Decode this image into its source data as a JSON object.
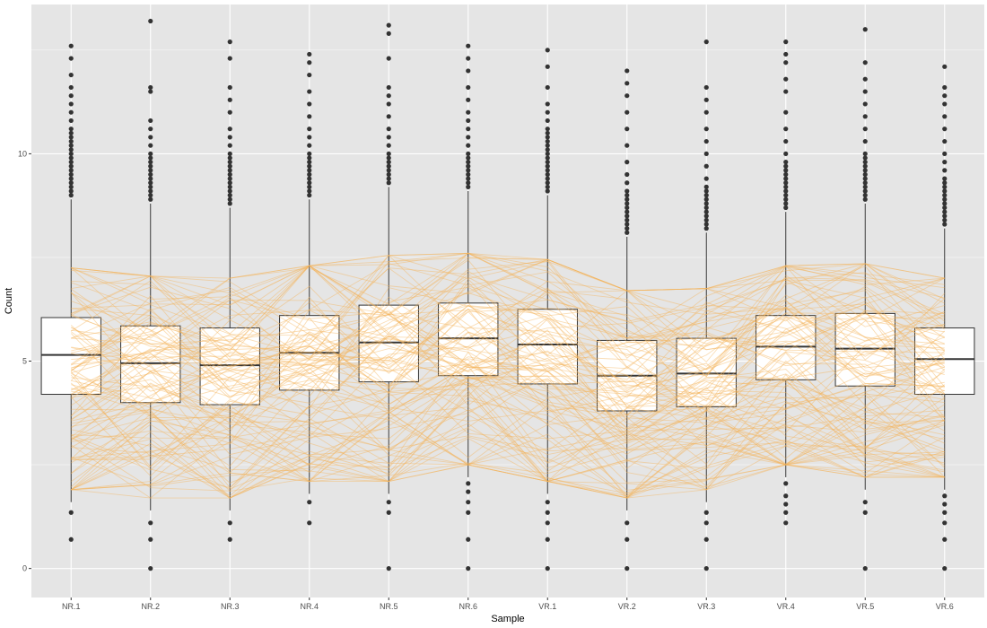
{
  "chart_data": {
    "type": "boxplot",
    "title": "",
    "xlabel": "Sample",
    "ylabel": "Count",
    "ylim": [
      -0.7,
      13.6
    ],
    "yticks": [
      0,
      5,
      10
    ],
    "ytick_labels": [
      "0",
      "5",
      "10"
    ],
    "grid": true,
    "legend": "none",
    "colors": {
      "panel": "#e5e5e5",
      "grid": "#ffffff",
      "box_fill": "#ffffff",
      "box_line": "#333333",
      "outlier": "#333333",
      "trend_line": "#f5b35c"
    },
    "categories": [
      "NR.1",
      "NR.2",
      "NR.3",
      "NR.4",
      "NR.5",
      "NR.6",
      "VR.1",
      "VR.2",
      "VR.3",
      "VR.4",
      "VR.5",
      "VR.6"
    ],
    "boxes": [
      {
        "q1": 4.2,
        "median": 5.15,
        "q3": 6.05,
        "whisker_low": 1.6,
        "whisker_high": 8.9,
        "outliers_high": [
          9.0,
          9.1,
          9.2,
          9.3,
          9.4,
          9.5,
          9.6,
          9.7,
          9.8,
          9.9,
          10.0,
          10.1,
          10.2,
          10.3,
          10.4,
          10.5,
          10.6,
          10.8,
          11.0,
          11.2,
          11.4,
          11.6,
          11.9,
          12.3,
          12.6
        ],
        "outliers_low": [
          1.35,
          0.7
        ]
      },
      {
        "q1": 4.0,
        "median": 4.95,
        "q3": 5.85,
        "whisker_low": 1.4,
        "whisker_high": 8.8,
        "outliers_high": [
          8.9,
          9.0,
          9.1,
          9.2,
          9.3,
          9.4,
          9.5,
          9.6,
          9.7,
          9.8,
          9.9,
          10.0,
          10.2,
          10.4,
          10.6,
          10.8,
          11.5,
          11.6,
          13.2
        ],
        "outliers_low": [
          1.1,
          0.7,
          0.0
        ]
      },
      {
        "q1": 3.95,
        "median": 4.9,
        "q3": 5.8,
        "whisker_low": 1.4,
        "whisker_high": 8.7,
        "outliers_high": [
          8.8,
          8.9,
          9.0,
          9.1,
          9.2,
          9.3,
          9.4,
          9.5,
          9.6,
          9.7,
          9.8,
          9.9,
          10.0,
          10.2,
          10.4,
          10.6,
          11.0,
          11.3,
          11.6,
          12.3,
          12.7
        ],
        "outliers_low": [
          1.1,
          0.7
        ]
      },
      {
        "q1": 4.3,
        "median": 5.2,
        "q3": 6.1,
        "whisker_low": 1.8,
        "whisker_high": 8.9,
        "outliers_high": [
          9.0,
          9.1,
          9.2,
          9.3,
          9.4,
          9.5,
          9.6,
          9.7,
          9.8,
          9.9,
          10.0,
          10.2,
          10.4,
          10.6,
          10.9,
          11.2,
          11.5,
          11.9,
          12.2,
          12.4
        ],
        "outliers_low": [
          1.6,
          1.1
        ]
      },
      {
        "q1": 4.5,
        "median": 5.45,
        "q3": 6.35,
        "whisker_low": 1.8,
        "whisker_high": 9.2,
        "outliers_high": [
          9.3,
          9.4,
          9.5,
          9.6,
          9.7,
          9.8,
          9.9,
          10.0,
          10.2,
          10.4,
          10.6,
          10.9,
          11.2,
          11.4,
          11.6,
          12.3,
          12.9,
          13.1
        ],
        "outliers_low": [
          1.6,
          1.35,
          0.0
        ]
      },
      {
        "q1": 4.65,
        "median": 5.55,
        "q3": 6.4,
        "whisker_low": 2.2,
        "whisker_high": 9.1,
        "outliers_high": [
          9.2,
          9.3,
          9.4,
          9.5,
          9.6,
          9.7,
          9.8,
          9.9,
          10.0,
          10.2,
          10.4,
          10.6,
          10.8,
          11.0,
          11.3,
          11.6,
          12.0,
          12.3,
          12.6
        ],
        "outliers_low": [
          2.05,
          1.85,
          1.6,
          1.35,
          0.7,
          0.0
        ]
      },
      {
        "q1": 4.45,
        "median": 5.4,
        "q3": 6.25,
        "whisker_low": 1.8,
        "whisker_high": 9.0,
        "outliers_high": [
          9.1,
          9.2,
          9.3,
          9.4,
          9.5,
          9.6,
          9.7,
          9.8,
          9.9,
          10.0,
          10.1,
          10.2,
          10.3,
          10.4,
          10.5,
          10.6,
          10.8,
          11.0,
          11.2,
          11.6,
          12.1,
          12.5
        ],
        "outliers_low": [
          1.6,
          1.35,
          1.1,
          0.7,
          0.0
        ]
      },
      {
        "q1": 3.8,
        "median": 4.65,
        "q3": 5.5,
        "whisker_low": 1.4,
        "whisker_high": 8.0,
        "outliers_high": [
          8.1,
          8.2,
          8.3,
          8.4,
          8.5,
          8.6,
          8.7,
          8.8,
          8.9,
          9.0,
          9.1,
          9.3,
          9.5,
          9.8,
          10.2,
          10.6,
          11.0,
          11.4,
          11.7,
          12.0
        ],
        "outliers_low": [
          1.1,
          0.7,
          0.0
        ]
      },
      {
        "q1": 3.9,
        "median": 4.7,
        "q3": 5.55,
        "whisker_low": 1.6,
        "whisker_high": 8.1,
        "outliers_high": [
          8.2,
          8.3,
          8.4,
          8.5,
          8.6,
          8.7,
          8.8,
          8.9,
          9.0,
          9.1,
          9.2,
          9.4,
          9.7,
          10.0,
          10.3,
          10.6,
          11.0,
          11.3,
          11.6,
          12.7
        ],
        "outliers_low": [
          1.35,
          1.1,
          0.7,
          0.0
        ]
      },
      {
        "q1": 4.55,
        "median": 5.35,
        "q3": 6.1,
        "whisker_low": 2.2,
        "whisker_high": 8.6,
        "outliers_high": [
          8.7,
          8.8,
          8.9,
          9.0,
          9.1,
          9.2,
          9.3,
          9.4,
          9.5,
          9.6,
          9.7,
          9.8,
          10.0,
          10.3,
          10.6,
          11.0,
          11.5,
          11.8,
          12.2,
          12.4,
          12.7
        ],
        "outliers_low": [
          2.05,
          1.75,
          1.55,
          1.35,
          1.1
        ]
      },
      {
        "q1": 4.4,
        "median": 5.3,
        "q3": 6.15,
        "whisker_low": 1.9,
        "whisker_high": 8.8,
        "outliers_high": [
          8.9,
          9.0,
          9.1,
          9.2,
          9.3,
          9.4,
          9.5,
          9.6,
          9.7,
          9.8,
          9.9,
          10.0,
          10.3,
          10.6,
          10.9,
          11.2,
          11.5,
          11.8,
          12.2,
          13.0
        ],
        "outliers_low": [
          1.6,
          1.35,
          0.0
        ]
      },
      {
        "q1": 4.2,
        "median": 5.05,
        "q3": 5.8,
        "whisker_low": 1.9,
        "whisker_high": 8.2,
        "outliers_high": [
          8.3,
          8.4,
          8.5,
          8.6,
          8.7,
          8.8,
          8.9,
          9.0,
          9.1,
          9.2,
          9.3,
          9.4,
          9.6,
          9.8,
          10.0,
          10.3,
          10.6,
          10.9,
          11.2,
          11.4,
          11.6,
          12.1
        ],
        "outliers_low": [
          1.75,
          1.55,
          1.35,
          1.1,
          0.7,
          0.0
        ]
      }
    ]
  }
}
